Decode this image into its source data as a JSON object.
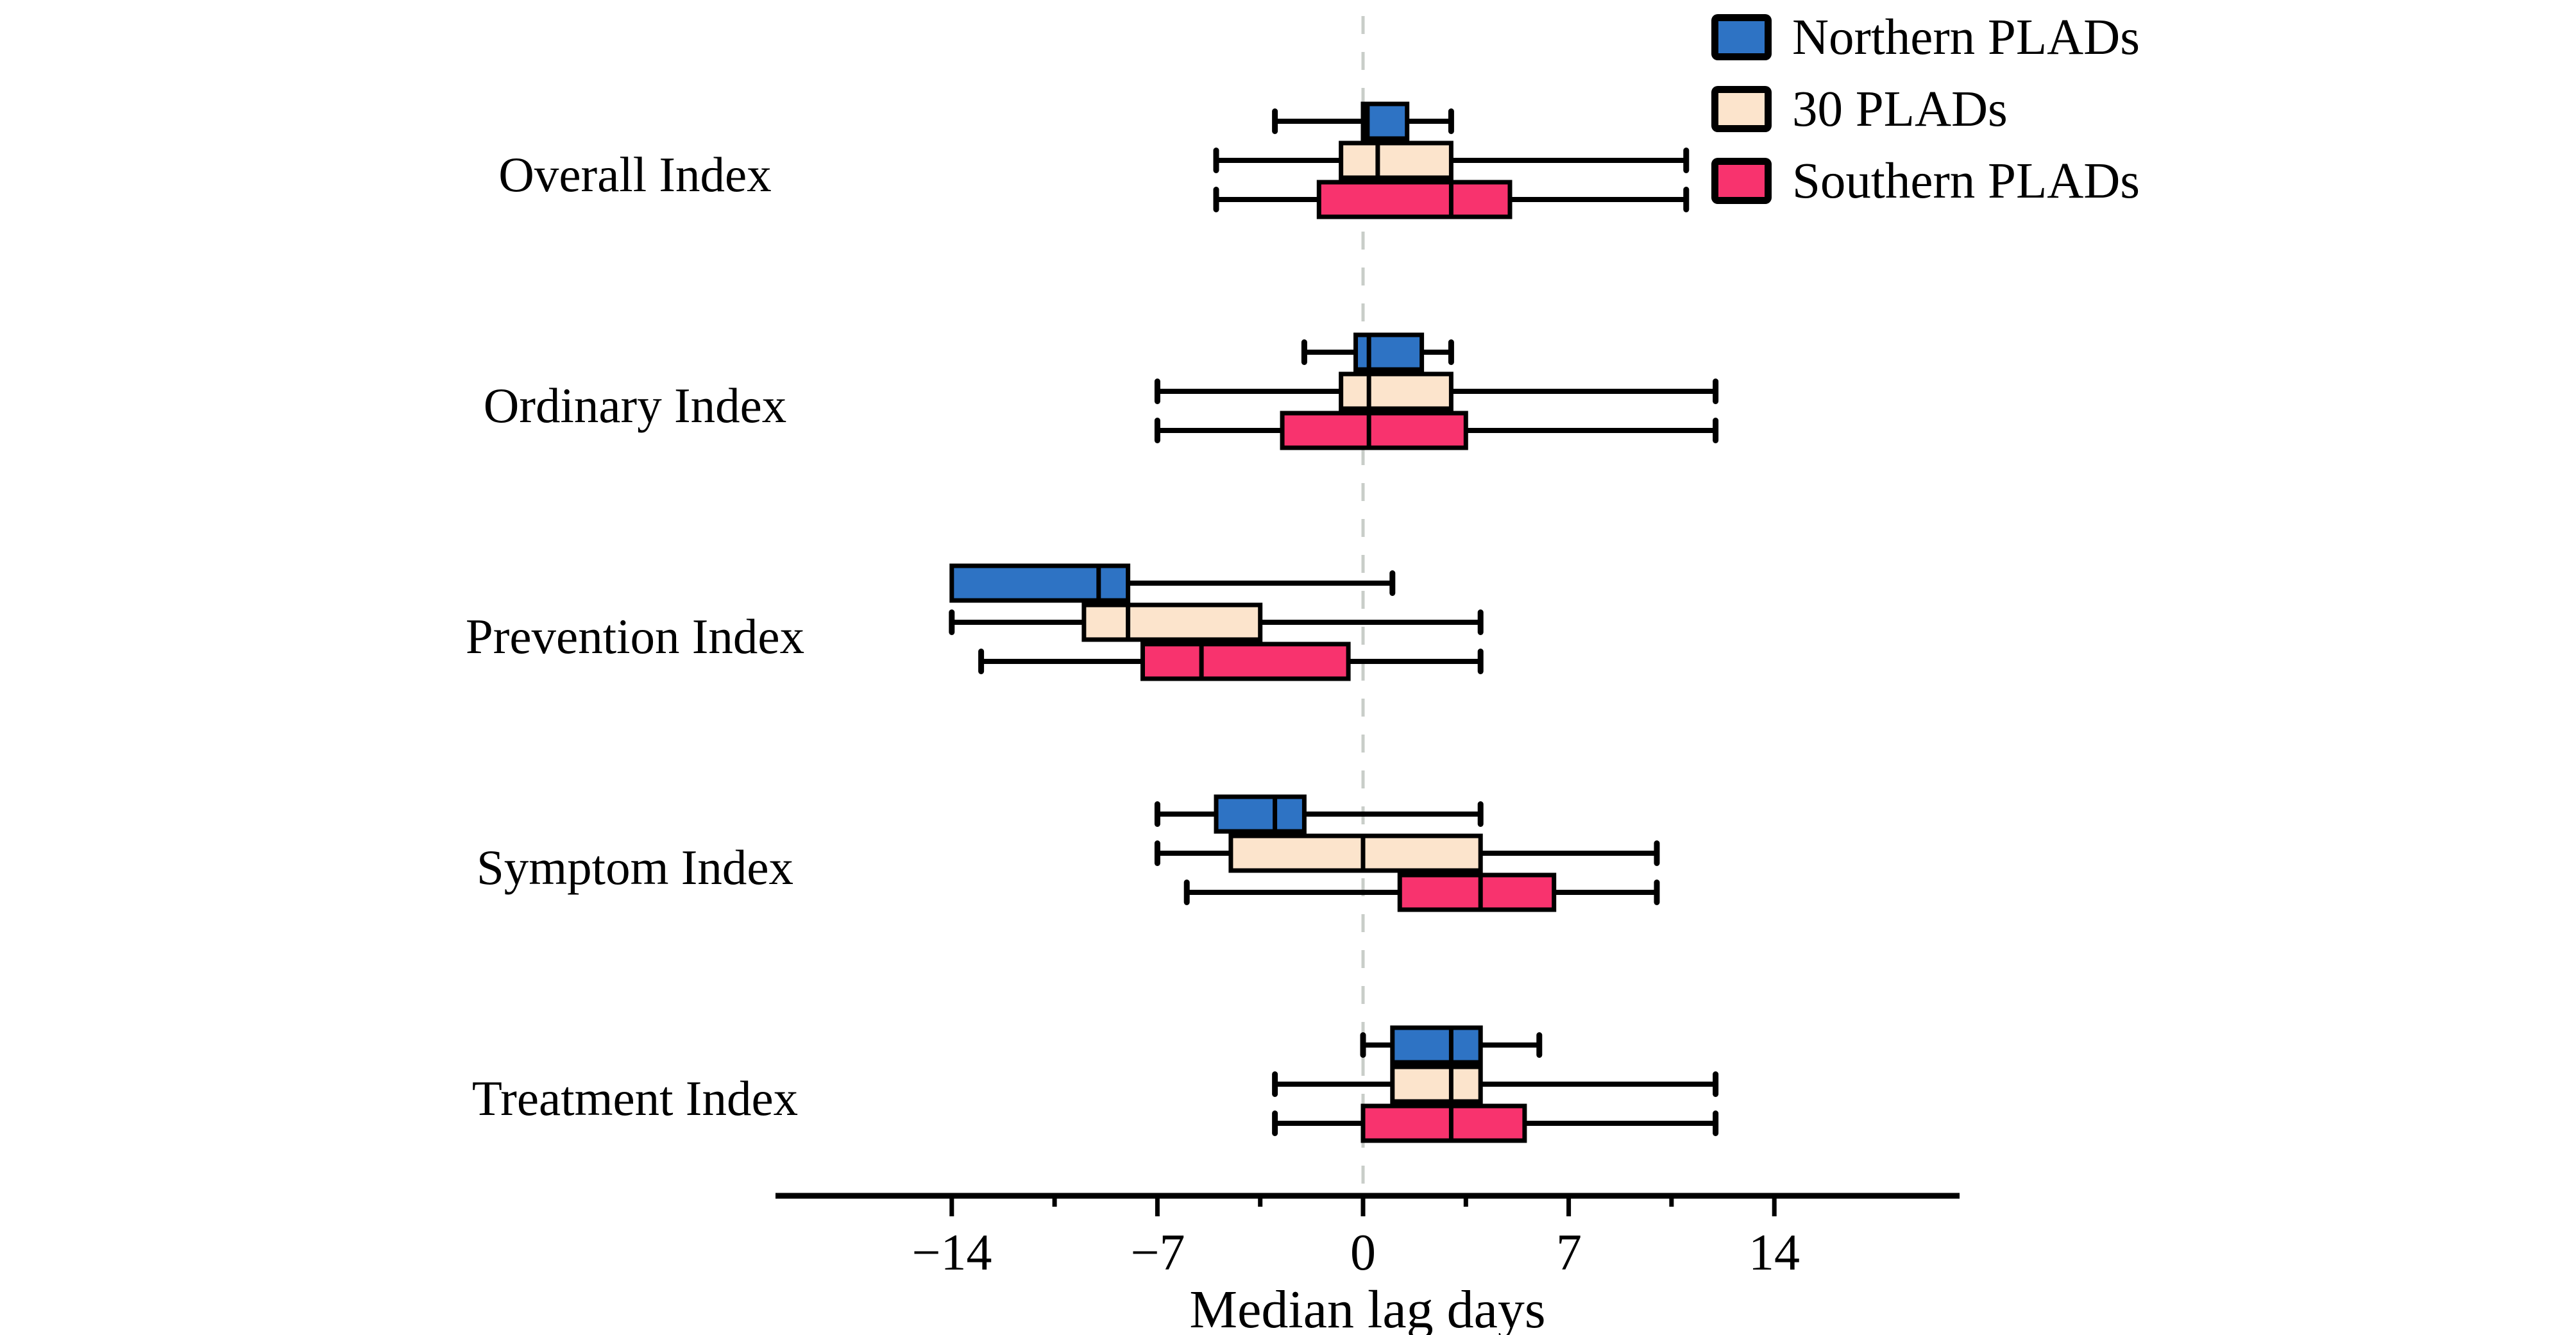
{
  "figure": {
    "xlabel": "Median lag days",
    "x_tick_labels": [
      "−14",
      "−7",
      "0",
      "7",
      "14"
    ]
  },
  "legend": {
    "items": [
      {
        "label": "Northern PLADs",
        "color": "#2E73C4"
      },
      {
        "label": "30 PLADs",
        "color": "#FCE4CC"
      },
      {
        "label": "Southern PLADs",
        "color": "#F8336E"
      }
    ]
  },
  "chart_data": {
    "type": "boxplot",
    "orientation": "horizontal",
    "title": "",
    "xlabel": "Median lag days",
    "ylabel": "",
    "x_ticks": [
      -14,
      -7,
      0,
      7,
      14
    ],
    "x_minor_ticks": [
      -10.5,
      -3.5,
      3.5,
      10.5
    ],
    "xlim": [
      -20,
      20.3
    ],
    "zero_reference_line": 0,
    "grid": false,
    "legend_position": "upper right",
    "categories": [
      "Overall Index",
      "Ordinary Index",
      "Prevention Index",
      "Symptom Index",
      "Treatment Index"
    ],
    "series": [
      {
        "name": "Northern PLADs",
        "color": "#2E73C4",
        "boxes": [
          {
            "whislo": -3,
            "q1": 0,
            "med": 0.15,
            "q3": 1.5,
            "whishi": 3
          },
          {
            "whislo": -2,
            "q1": -0.25,
            "med": 0.2,
            "q3": 2,
            "whishi": 3
          },
          {
            "whislo": -14,
            "q1": -14,
            "med": -9,
            "q3": -8,
            "whishi": 1
          },
          {
            "whislo": -7,
            "q1": -5,
            "med": -3,
            "q3": -2,
            "whishi": 4
          },
          {
            "whislo": 0,
            "q1": 1,
            "med": 3,
            "q3": 4,
            "whishi": 6
          }
        ]
      },
      {
        "name": "30 PLADs",
        "color": "#FCE4CC",
        "boxes": [
          {
            "whislo": -5,
            "q1": -0.75,
            "med": 0.5,
            "q3": 3,
            "whishi": 11
          },
          {
            "whislo": -7,
            "q1": -0.75,
            "med": 0.2,
            "q3": 3,
            "whishi": 12
          },
          {
            "whislo": -14,
            "q1": -9.5,
            "med": -8,
            "q3": -3.5,
            "whishi": 4
          },
          {
            "whislo": -7,
            "q1": -4.5,
            "med": 0,
            "q3": 4,
            "whishi": 10
          },
          {
            "whislo": -3,
            "q1": 1,
            "med": 3,
            "q3": 4,
            "whishi": 12
          }
        ]
      },
      {
        "name": "Southern PLADs",
        "color": "#F8336E",
        "boxes": [
          {
            "whislo": -5,
            "q1": -1.5,
            "med": 3,
            "q3": 5,
            "whishi": 11
          },
          {
            "whislo": -7,
            "q1": -2.75,
            "med": 0.2,
            "q3": 3.5,
            "whishi": 12
          },
          {
            "whislo": -13,
            "q1": -7.5,
            "med": -5.5,
            "q3": -0.5,
            "whishi": 4
          },
          {
            "whislo": -6,
            "q1": 1.25,
            "med": 4,
            "q3": 6.5,
            "whishi": 10
          },
          {
            "whislo": -3,
            "q1": 0,
            "med": 3,
            "q3": 5.5,
            "whishi": 12
          }
        ]
      }
    ]
  }
}
